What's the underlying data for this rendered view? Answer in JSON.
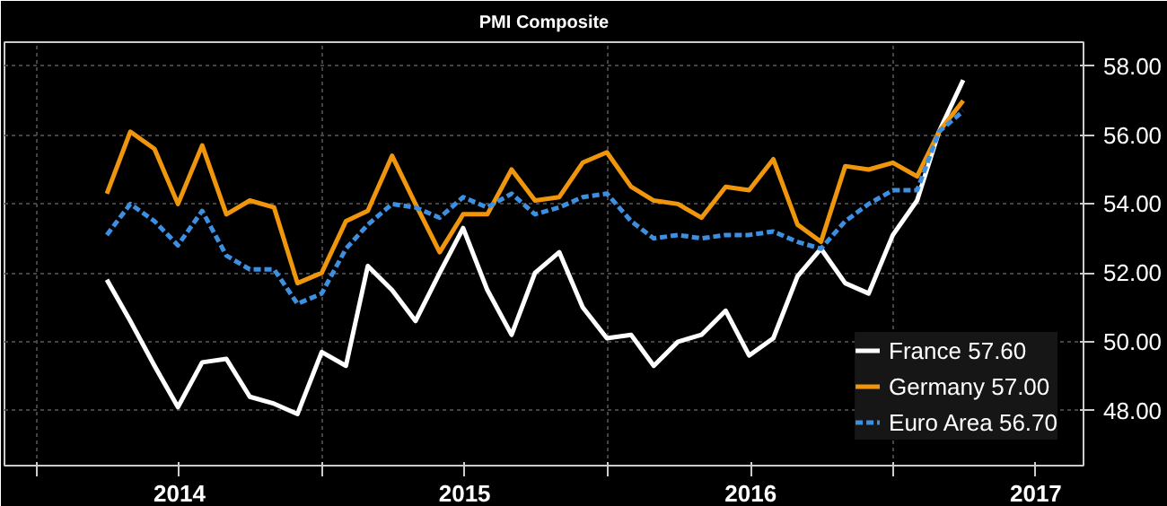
{
  "chart_data": {
    "type": "line",
    "title": "PMI Composite",
    "x": [
      "2014-03-31",
      "2014-04-30",
      "2014-05-31",
      "2014-06-30",
      "2014-07-31",
      "2014-08-31",
      "2014-09-30",
      "2014-10-31",
      "2014-11-30",
      "2014-12-31",
      "2015-01-31",
      "2015-02-28",
      "2015-03-31",
      "2015-04-30",
      "2015-05-31",
      "2015-06-30",
      "2015-07-31",
      "2015-08-31",
      "2015-09-30",
      "2015-10-31",
      "2015-11-30",
      "2015-12-31",
      "2016-01-31",
      "2016-02-29",
      "2016-03-31",
      "2016-04-30",
      "2016-05-31",
      "2016-06-30",
      "2016-07-31",
      "2016-08-31",
      "2016-09-30",
      "2016-10-31",
      "2016-11-30",
      "2016-12-31",
      "2017-01-31",
      "2017-02-28",
      "2017-03-31"
    ],
    "series": [
      {
        "name": "France 57.60",
        "color": "#ffffff",
        "line_style": "solid",
        "values": [
          51.8,
          50.6,
          49.3,
          48.1,
          49.4,
          49.5,
          48.4,
          48.2,
          47.9,
          49.7,
          49.3,
          52.2,
          51.5,
          50.6,
          52.0,
          53.3,
          51.5,
          50.2,
          52.0,
          52.6,
          51.0,
          50.1,
          50.2,
          49.3,
          50.0,
          50.2,
          50.9,
          49.6,
          50.1,
          51.9,
          52.7,
          51.7,
          51.4,
          53.1,
          54.1,
          56.1,
          57.6
        ]
      },
      {
        "name": "Germany 57.00",
        "color": "#f0960c",
        "line_style": "solid",
        "values": [
          54.3,
          56.1,
          55.6,
          54.0,
          55.7,
          53.7,
          54.1,
          53.9,
          51.7,
          52.0,
          53.5,
          53.8,
          55.4,
          54.0,
          52.6,
          53.7,
          53.7,
          55.0,
          54.1,
          54.2,
          55.2,
          55.5,
          54.5,
          54.1,
          54.0,
          53.6,
          54.5,
          54.4,
          55.3,
          53.4,
          52.9,
          55.1,
          55.0,
          55.2,
          54.8,
          56.1,
          57.0
        ]
      },
      {
        "name": "Euro Area 56.70",
        "color": "#3d8fe0",
        "line_style": "dashed",
        "values": [
          53.1,
          54.0,
          53.5,
          52.8,
          53.8,
          52.5,
          52.1,
          52.1,
          51.1,
          51.4,
          52.7,
          53.4,
          54.0,
          53.9,
          53.6,
          54.2,
          53.9,
          54.3,
          53.7,
          53.9,
          54.2,
          54.3,
          53.5,
          53.0,
          53.1,
          53.0,
          53.1,
          53.1,
          53.2,
          52.9,
          52.7,
          53.5,
          54.0,
          54.4,
          54.4,
          56.1,
          56.7
        ]
      }
    ],
    "xlim": [
      "2013-11-20",
      "2017-09-01"
    ],
    "xticks": [
      {
        "value": "2014-01-01",
        "label": null
      },
      {
        "value": "2014-07-02",
        "label": "2014"
      },
      {
        "value": "2015-01-01",
        "label": null
      },
      {
        "value": "2015-07-02",
        "label": "2015"
      },
      {
        "value": "2016-01-01",
        "label": null
      },
      {
        "value": "2016-07-02",
        "label": "2016"
      },
      {
        "value": "2017-01-01",
        "label": null
      },
      {
        "value": "2017-07-02",
        "label": "2017"
      }
    ],
    "ylim": [
      46.4,
      58.7
    ],
    "yticks": [
      {
        "value": 48,
        "label": "48.00"
      },
      {
        "value": 50,
        "label": "50.00"
      },
      {
        "value": 52,
        "label": "52.00"
      },
      {
        "value": 54,
        "label": "54.00"
      },
      {
        "value": 56,
        "label": "56.00"
      },
      {
        "value": 58,
        "label": "58.00"
      }
    ],
    "grid": true,
    "legend": "bottom right",
    "marker": "none"
  }
}
